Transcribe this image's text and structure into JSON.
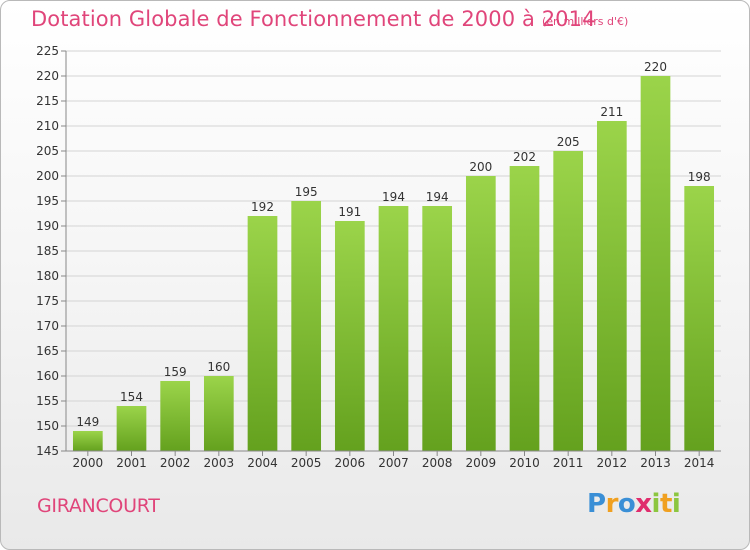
{
  "title": "Dotation Globale de Fonctionnement de 2000 à 2014",
  "subtitle": "(en milliers d'€)",
  "commune": "GIRANCOURT",
  "logo": {
    "text": "Proxiti",
    "letters": [
      {
        "ch": "P",
        "color": "#3a8fd6"
      },
      {
        "ch": "r",
        "color": "#f0a020"
      },
      {
        "ch": "o",
        "color": "#3a8fd6"
      },
      {
        "ch": "x",
        "color": "#e02d6d"
      },
      {
        "ch": "i",
        "color": "#8cc63f"
      },
      {
        "ch": "t",
        "color": "#f0a020"
      },
      {
        "ch": "i",
        "color": "#8cc63f"
      }
    ]
  },
  "colors": {
    "accent": "#e0457a",
    "bar_light": "#9bd44a",
    "bar_dark": "#64a11e"
  },
  "chart_data": {
    "type": "bar",
    "title": "Dotation Globale de Fonctionnement de 2000 à 2014",
    "subtitle": "(en milliers d'€)",
    "categories": [
      "2000",
      "2001",
      "2002",
      "2003",
      "2004",
      "2005",
      "2006",
      "2007",
      "2008",
      "2009",
      "2010",
      "2011",
      "2012",
      "2013",
      "2014"
    ],
    "values": [
      149,
      154,
      159,
      160,
      192,
      195,
      191,
      194,
      194,
      200,
      202,
      205,
      211,
      220,
      198
    ],
    "ylim": [
      145,
      225
    ],
    "yticks": [
      145,
      150,
      155,
      160,
      165,
      170,
      175,
      180,
      185,
      190,
      195,
      200,
      205,
      210,
      215,
      220,
      225
    ],
    "grid": true,
    "xlabel": "",
    "ylabel": ""
  }
}
